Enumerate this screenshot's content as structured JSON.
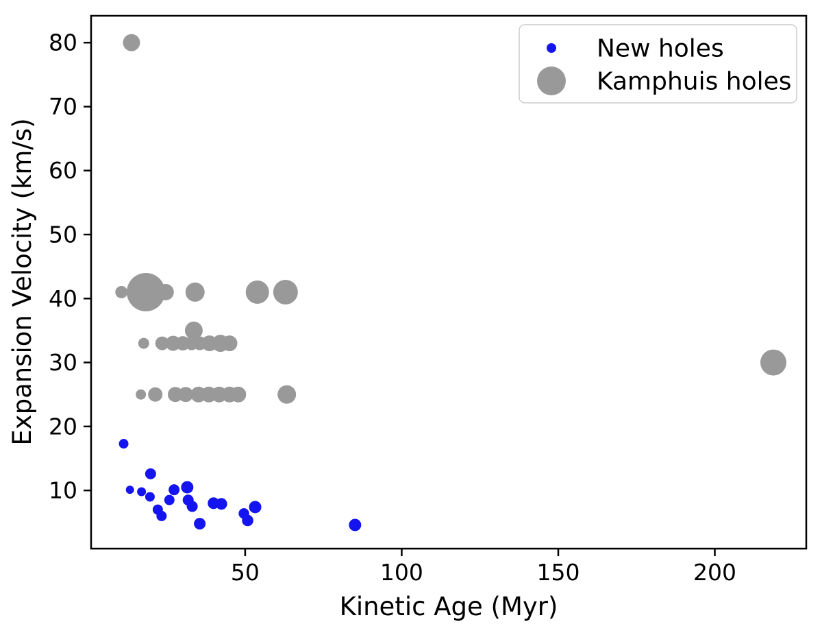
{
  "figure": {
    "background": "#ffffff",
    "text_color": "#000000"
  },
  "chart_data": {
    "type": "scatter",
    "title": "",
    "xlabel": "Kinetic Age (Myr)",
    "ylabel": "Expansion Velocity (km/s)",
    "xlim": [
      0.8,
      229.2
    ],
    "ylim": [
      0.9,
      84.2
    ],
    "xticks": [
      50,
      100,
      150,
      200
    ],
    "yticks": [
      10,
      20,
      30,
      40,
      50,
      60,
      70,
      80
    ],
    "grid": false,
    "legend": {
      "position": "upper right",
      "entries": [
        "New holes",
        "Kamphuis holes"
      ]
    },
    "series": [
      {
        "name": "New holes",
        "color": "#1414f0",
        "marker": "circle",
        "legend_marker_radius_px": 7,
        "points": [
          {
            "x": 11.2,
            "y": 17.3,
            "r": 7
          },
          {
            "x": 13.2,
            "y": 10.1,
            "r": 6
          },
          {
            "x": 16.9,
            "y": 9.8,
            "r": 6.5
          },
          {
            "x": 19.8,
            "y": 12.6,
            "r": 8
          },
          {
            "x": 19.6,
            "y": 9.0,
            "r": 7
          },
          {
            "x": 22.1,
            "y": 7.0,
            "r": 7.5
          },
          {
            "x": 23.3,
            "y": 6.0,
            "r": 7.5
          },
          {
            "x": 25.8,
            "y": 8.5,
            "r": 7.5
          },
          {
            "x": 27.3,
            "y": 10.1,
            "r": 8
          },
          {
            "x": 31.5,
            "y": 10.5,
            "r": 9
          },
          {
            "x": 31.8,
            "y": 8.5,
            "r": 8
          },
          {
            "x": 33.1,
            "y": 7.5,
            "r": 8
          },
          {
            "x": 35.5,
            "y": 4.8,
            "r": 8.5
          },
          {
            "x": 39.9,
            "y": 8.0,
            "r": 8.5
          },
          {
            "x": 42.4,
            "y": 7.9,
            "r": 8.5
          },
          {
            "x": 49.6,
            "y": 6.4,
            "r": 7.7
          },
          {
            "x": 50.8,
            "y": 5.3,
            "r": 8.3
          },
          {
            "x": 53.2,
            "y": 7.4,
            "r": 9
          },
          {
            "x": 85.1,
            "y": 4.6,
            "r": 9
          }
        ]
      },
      {
        "name": "Kamphuis holes",
        "color": "#999999",
        "marker": "circle",
        "legend_marker_radius_px": 21,
        "points": [
          {
            "x": 13.7,
            "y": 80,
            "r": 12.5
          },
          {
            "x": 10.5,
            "y": 41,
            "r": 9
          },
          {
            "x": 18.3,
            "y": 41,
            "r": 28
          },
          {
            "x": 24.6,
            "y": 41,
            "r": 12
          },
          {
            "x": 34.0,
            "y": 41,
            "r": 14
          },
          {
            "x": 53.9,
            "y": 41,
            "r": 17
          },
          {
            "x": 62.9,
            "y": 41,
            "r": 18
          },
          {
            "x": 17.6,
            "y": 33,
            "r": 8
          },
          {
            "x": 23.5,
            "y": 33,
            "r": 10
          },
          {
            "x": 27.0,
            "y": 33,
            "r": 11
          },
          {
            "x": 30.1,
            "y": 33,
            "r": 10.5
          },
          {
            "x": 32.9,
            "y": 33,
            "r": 10
          },
          {
            "x": 33.6,
            "y": 35,
            "r": 13
          },
          {
            "x": 35.5,
            "y": 33,
            "r": 10
          },
          {
            "x": 38.6,
            "y": 33,
            "r": 11.5
          },
          {
            "x": 42.1,
            "y": 33,
            "r": 12.5
          },
          {
            "x": 45.0,
            "y": 33,
            "r": 11.5
          },
          {
            "x": 16.7,
            "y": 25,
            "r": 7.5
          },
          {
            "x": 21.3,
            "y": 25,
            "r": 10.5
          },
          {
            "x": 27.7,
            "y": 25,
            "r": 11
          },
          {
            "x": 31.0,
            "y": 25,
            "r": 11
          },
          {
            "x": 35.1,
            "y": 25,
            "r": 11.5
          },
          {
            "x": 38.4,
            "y": 25,
            "r": 11.5
          },
          {
            "x": 41.7,
            "y": 25,
            "r": 11.5
          },
          {
            "x": 45.0,
            "y": 25,
            "r": 11.5
          },
          {
            "x": 47.8,
            "y": 25,
            "r": 11.5
          },
          {
            "x": 63.3,
            "y": 25,
            "r": 13.5
          },
          {
            "x": 218.7,
            "y": 30,
            "r": 19
          }
        ]
      }
    ]
  }
}
